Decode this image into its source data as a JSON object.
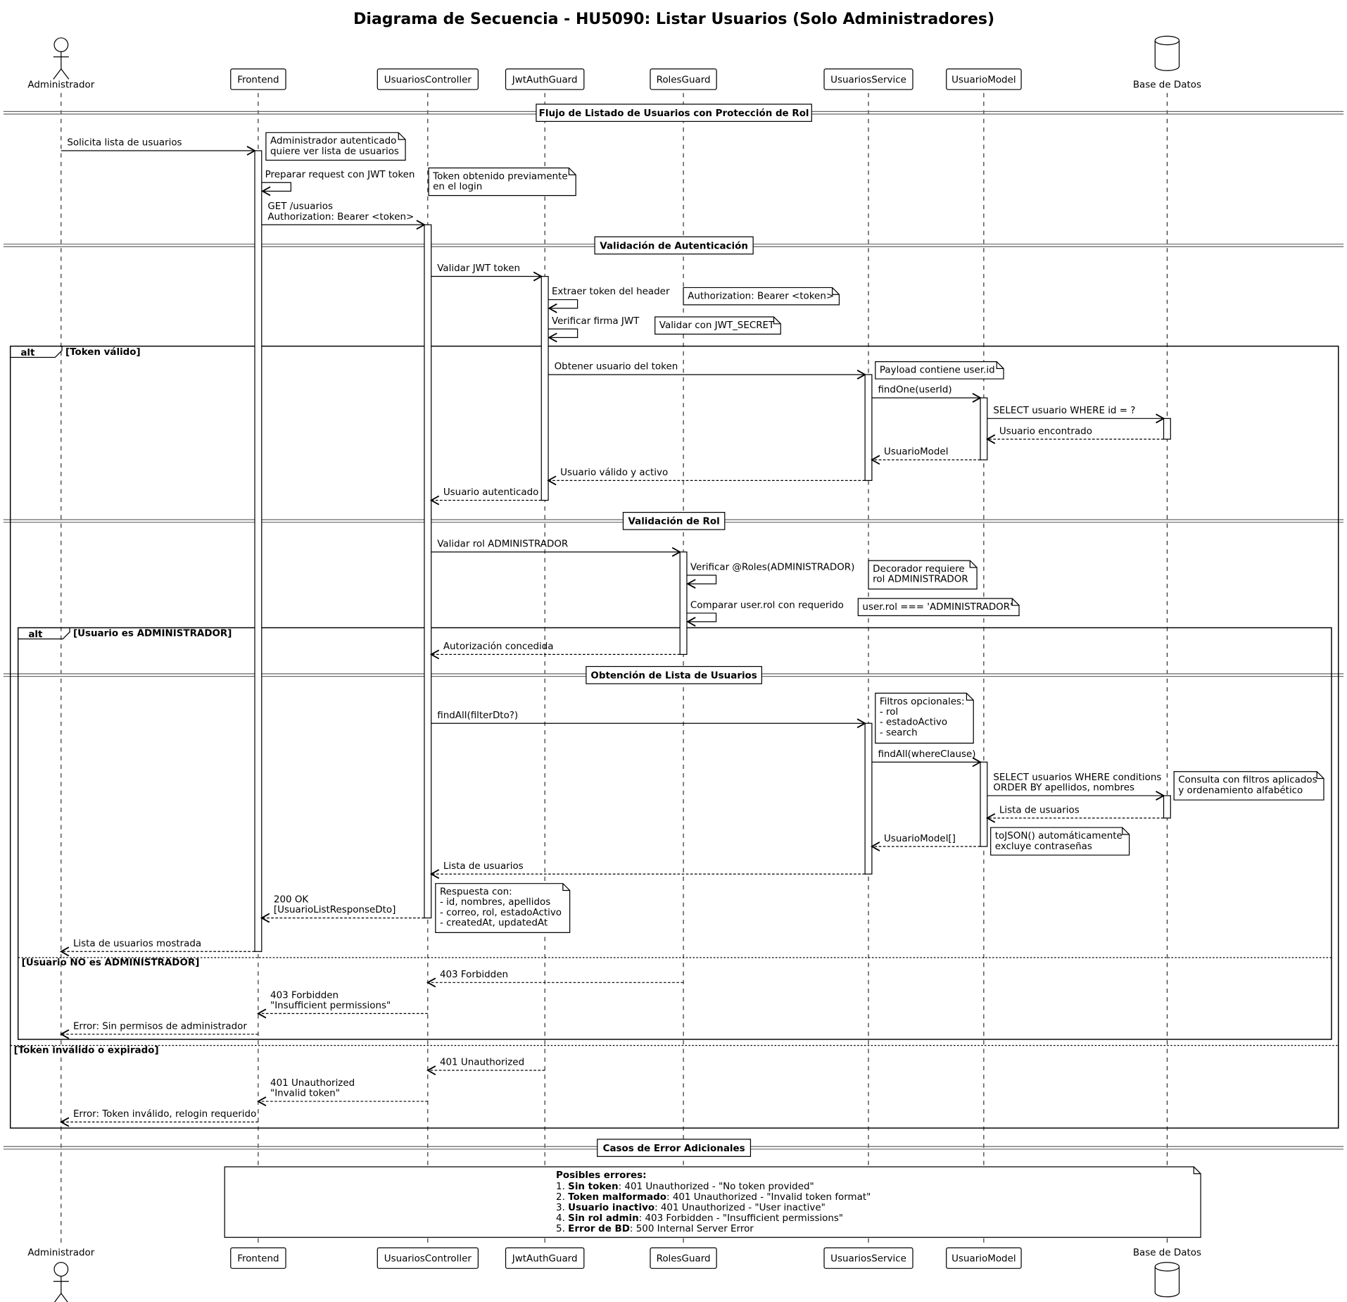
{
  "title": "Diagrama de Secuencia - HU5090: Listar Usuarios (Solo Administradores)",
  "participants": [
    {
      "name": "Administrador",
      "type": "actor"
    },
    {
      "name": "Frontend",
      "type": "participant"
    },
    {
      "name": "UsuariosController",
      "type": "participant"
    },
    {
      "name": "JwtAuthGuard",
      "type": "participant"
    },
    {
      "name": "RolesGuard",
      "type": "participant"
    },
    {
      "name": "UsuariosService",
      "type": "participant"
    },
    {
      "name": "UsuarioModel",
      "type": "participant"
    },
    {
      "name": "Base de Datos",
      "type": "database"
    }
  ],
  "dividers": [
    "Flujo de Listado de Usuarios con Protección de Rol",
    "Validación de Autenticación",
    "Validación de Rol",
    "Obtención de Lista de Usuarios",
    "Casos de Error Adicionales"
  ],
  "fragments": {
    "outer": {
      "operator": "alt",
      "guards": [
        "[Token válido]",
        "[Token inválido o expirado]"
      ]
    },
    "inner": {
      "operator": "alt",
      "guards": [
        "[Usuario es ADMINISTRADOR]",
        "[Usuario NO es ADMINISTRADOR]"
      ]
    }
  },
  "messages": [
    {
      "from": 0,
      "to": 1,
      "lines": [
        "Solicita lista de usuarios"
      ],
      "dashed": false
    },
    {
      "from": 1,
      "to": 1,
      "lines": [
        "Preparar request con JWT token"
      ],
      "dashed": false
    },
    {
      "from": 1,
      "to": 2,
      "lines": [
        "GET /usuarios",
        "Authorization: Bearer <token>"
      ],
      "dashed": false
    },
    {
      "from": 2,
      "to": 3,
      "lines": [
        "Validar JWT token"
      ],
      "dashed": false
    },
    {
      "from": 3,
      "to": 3,
      "lines": [
        "Extraer token del header"
      ],
      "dashed": false
    },
    {
      "from": 3,
      "to": 3,
      "lines": [
        "Verificar firma JWT"
      ],
      "dashed": false
    },
    {
      "from": 3,
      "to": 5,
      "lines": [
        "Obtener usuario del token"
      ],
      "dashed": false
    },
    {
      "from": 5,
      "to": 6,
      "lines": [
        "findOne(userId)"
      ],
      "dashed": false
    },
    {
      "from": 6,
      "to": 7,
      "lines": [
        "SELECT usuario WHERE id = ?"
      ],
      "dashed": false
    },
    {
      "from": 7,
      "to": 6,
      "lines": [
        "Usuario encontrado"
      ],
      "dashed": true
    },
    {
      "from": 6,
      "to": 5,
      "lines": [
        "UsuarioModel"
      ],
      "dashed": true
    },
    {
      "from": 5,
      "to": 3,
      "lines": [
        "Usuario válido y activo"
      ],
      "dashed": true
    },
    {
      "from": 3,
      "to": 2,
      "lines": [
        "Usuario autenticado"
      ],
      "dashed": true
    },
    {
      "from": 2,
      "to": 4,
      "lines": [
        "Validar rol ADMINISTRADOR"
      ],
      "dashed": false
    },
    {
      "from": 4,
      "to": 4,
      "lines": [
        "Verificar @Roles(ADMINISTRADOR)"
      ],
      "dashed": false
    },
    {
      "from": 4,
      "to": 4,
      "lines": [
        "Comparar user.rol con requerido"
      ],
      "dashed": false
    },
    {
      "from": 4,
      "to": 2,
      "lines": [
        "Autorización concedida"
      ],
      "dashed": true
    },
    {
      "from": 2,
      "to": 5,
      "lines": [
        "findAll(filterDto?)"
      ],
      "dashed": false
    },
    {
      "from": 5,
      "to": 6,
      "lines": [
        "findAll(whereClause)"
      ],
      "dashed": false
    },
    {
      "from": 6,
      "to": 7,
      "lines": [
        "SELECT usuarios WHERE conditions",
        "ORDER BY apellidos, nombres"
      ],
      "dashed": false
    },
    {
      "from": 7,
      "to": 6,
      "lines": [
        "Lista de usuarios"
      ],
      "dashed": true
    },
    {
      "from": 6,
      "to": 5,
      "lines": [
        "UsuarioModel[]"
      ],
      "dashed": true
    },
    {
      "from": 5,
      "to": 2,
      "lines": [
        "Lista de usuarios"
      ],
      "dashed": true
    },
    {
      "from": 2,
      "to": 1,
      "lines": [
        "200 OK",
        "[UsuarioListResponseDto]"
      ],
      "dashed": true
    },
    {
      "from": 1,
      "to": 0,
      "lines": [
        "Lista de usuarios mostrada"
      ],
      "dashed": true
    },
    {
      "from": 4,
      "to": 2,
      "lines": [
        "403 Forbidden"
      ],
      "dashed": true
    },
    {
      "from": 2,
      "to": 1,
      "lines": [
        "403 Forbidden",
        "\"Insufficient permissions\""
      ],
      "dashed": true
    },
    {
      "from": 1,
      "to": 0,
      "lines": [
        "Error: Sin permisos de administrador"
      ],
      "dashed": true
    },
    {
      "from": 3,
      "to": 2,
      "lines": [
        "401 Unauthorized"
      ],
      "dashed": true
    },
    {
      "from": 2,
      "to": 1,
      "lines": [
        "401 Unauthorized",
        "\"Invalid token\""
      ],
      "dashed": true
    },
    {
      "from": 1,
      "to": 0,
      "lines": [
        "Error: Token inválido, relogin requerido"
      ],
      "dashed": true
    }
  ],
  "notes": [
    {
      "lines": [
        "Administrador autenticado",
        "quiere ver lista de usuarios"
      ]
    },
    {
      "lines": [
        "Token obtenido previamente",
        "en el login"
      ]
    },
    {
      "lines": [
        "Authorization: Bearer <token>"
      ]
    },
    {
      "lines": [
        "Validar con JWT_SECRET"
      ]
    },
    {
      "lines": [
        "Payload contiene user.id"
      ]
    },
    {
      "lines": [
        "Decorador requiere",
        "rol ADMINISTRADOR"
      ]
    },
    {
      "lines": [
        "user.rol === 'ADMINISTRADOR'"
      ]
    },
    {
      "lines": [
        "Filtros opcionales:",
        "- rol",
        "- estadoActivo",
        "- search"
      ]
    },
    {
      "lines": [
        "Consulta con filtros aplicados",
        "y ordenamiento alfabético"
      ]
    },
    {
      "lines": [
        "toJSON() automáticamente",
        "excluye contraseñas"
      ]
    },
    {
      "lines": [
        "Respuesta con:",
        "- id, nombres, apellidos",
        "- correo, rol, estadoActivo",
        "- createdAt, updatedAt"
      ]
    }
  ],
  "error_note": {
    "heading": "Posibles errores:",
    "items": [
      {
        "num": "1. ",
        "bold": "Sin token",
        "rest": ": 401 Unauthorized - \"No token provided\""
      },
      {
        "num": "2. ",
        "bold": "Token malformado",
        "rest": ": 401 Unauthorized - \"Invalid token format\""
      },
      {
        "num": "3. ",
        "bold": "Usuario inactivo",
        "rest": ": 401 Unauthorized - \"User inactive\""
      },
      {
        "num": "4. ",
        "bold": "Sin rol admin",
        "rest": ": 403 Forbidden - \"Insufficient permissions\""
      },
      {
        "num": "5. ",
        "bold": "Error de BD",
        "rest": ": 500 Internal Server Error"
      }
    ]
  }
}
